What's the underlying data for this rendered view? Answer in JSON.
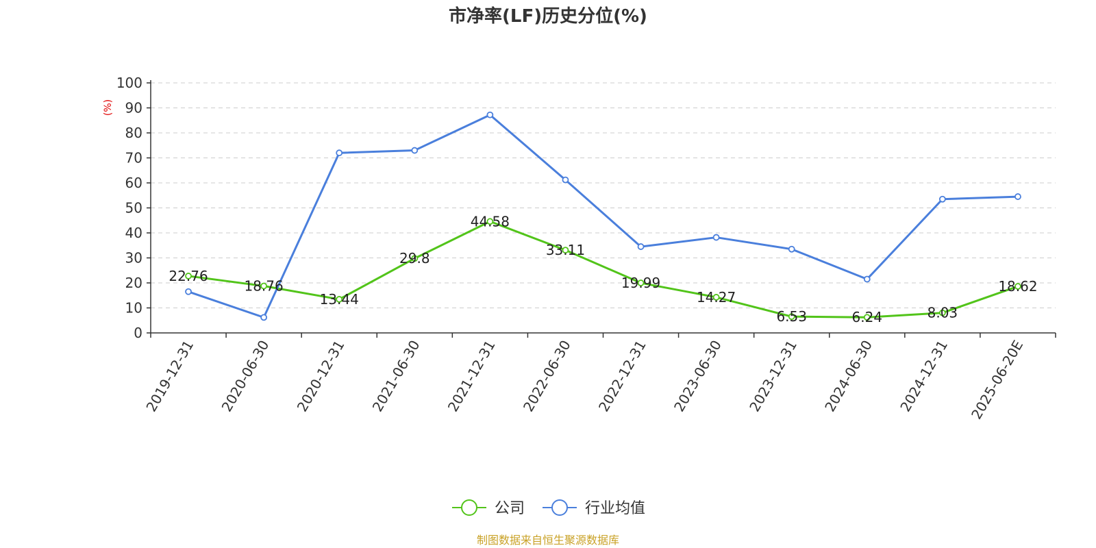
{
  "chart_data": {
    "type": "line",
    "title": "市净率(LF)历史分位(%)",
    "ylabel": "(%)",
    "xlabel": "",
    "ylim": [
      0,
      100
    ],
    "yticks": [
      0,
      10,
      20,
      30,
      40,
      50,
      60,
      70,
      80,
      90,
      100
    ],
    "grid": true,
    "legend_position": "bottom",
    "categories": [
      "2019-12-31",
      "2020-06-30",
      "2020-12-31",
      "2021-06-30",
      "2021-12-31",
      "2022-06-30",
      "2022-12-31",
      "2023-06-30",
      "2023-12-31",
      "2024-06-30",
      "2024-12-31",
      "2025-06-20E"
    ],
    "series": [
      {
        "name": "公司",
        "color": "#52c41a",
        "values": [
          22.76,
          18.76,
          13.44,
          29.8,
          44.58,
          33.11,
          19.99,
          14.27,
          6.53,
          6.24,
          8.03,
          18.62
        ],
        "labels": [
          "22.76",
          "18.76",
          "13.44",
          "29.8",
          "44.58",
          "33.11",
          "19.99",
          "14.27",
          "6.53",
          "6.24",
          "8.03",
          "18.62"
        ]
      },
      {
        "name": "行业均值",
        "color": "#4a7fdc",
        "values": [
          16.5,
          6.2,
          72.0,
          73.0,
          87.2,
          61.2,
          34.5,
          38.2,
          33.5,
          21.5,
          53.5,
          54.5
        ]
      }
    ]
  },
  "source": "制图数据来自恒生聚源数据库"
}
